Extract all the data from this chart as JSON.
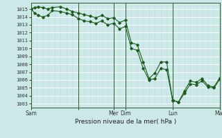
{
  "title": "Pression niveau de la mer( hPa )",
  "ylim": [
    1002.5,
    1015.8
  ],
  "xlim": [
    0,
    16
  ],
  "bg_color": "#cce8e8",
  "grid_major_color": "#ffffff",
  "grid_minor_color": "#bbdada",
  "line_color": "#1a5c1a",
  "day_tick_x": [
    0,
    4,
    7,
    8,
    12,
    16
  ],
  "day_labels": [
    "Sam",
    "",
    "Mer",
    "Dim",
    "Lun",
    "Mar"
  ],
  "line1_x": [
    0,
    0.3,
    0.6,
    1.0,
    1.4,
    1.8,
    2.5,
    3.0,
    3.5,
    4.0,
    4.5,
    5.0,
    5.5,
    6.0,
    6.5,
    7.0,
    7.5,
    8.0,
    8.5,
    9.0,
    9.5,
    10.0,
    10.5,
    11.0,
    11.5,
    12.0,
    12.5,
    13.0,
    13.5,
    14.0,
    14.5,
    15.0,
    15.5,
    16.0
  ],
  "line1_y": [
    1015.0,
    1015.2,
    1015.3,
    1015.2,
    1015.0,
    1015.2,
    1015.3,
    1015.0,
    1014.7,
    1014.5,
    1014.3,
    1014.1,
    1013.9,
    1014.2,
    1013.8,
    1013.9,
    1013.3,
    1013.6,
    1010.7,
    1010.5,
    1008.3,
    1006.2,
    1006.9,
    1008.3,
    1008.3,
    1003.4,
    1003.2,
    1004.6,
    1005.9,
    1005.7,
    1006.2,
    1005.3,
    1005.1,
    1006.3
  ],
  "line2_x": [
    0,
    0.3,
    0.6,
    1.0,
    1.4,
    1.8,
    2.5,
    3.0,
    3.5,
    4.0,
    4.5,
    5.0,
    5.5,
    6.0,
    6.5,
    7.0,
    7.5,
    8.0,
    8.5,
    9.0,
    9.5,
    10.0,
    10.5,
    11.0,
    11.5,
    12.0,
    12.5,
    13.0,
    13.5,
    14.0,
    14.5,
    15.0,
    15.5,
    16.0
  ],
  "line2_y": [
    1015.0,
    1014.5,
    1014.2,
    1014.0,
    1014.2,
    1014.8,
    1014.7,
    1014.5,
    1014.3,
    1013.8,
    1013.5,
    1013.4,
    1013.2,
    1013.5,
    1013.0,
    1013.2,
    1012.5,
    1012.8,
    1010.0,
    1009.8,
    1007.5,
    1006.0,
    1006.2,
    1007.5,
    1007.3,
    1003.5,
    1003.2,
    1004.3,
    1005.5,
    1005.4,
    1005.9,
    1005.1,
    1005.0,
    1006.1
  ]
}
